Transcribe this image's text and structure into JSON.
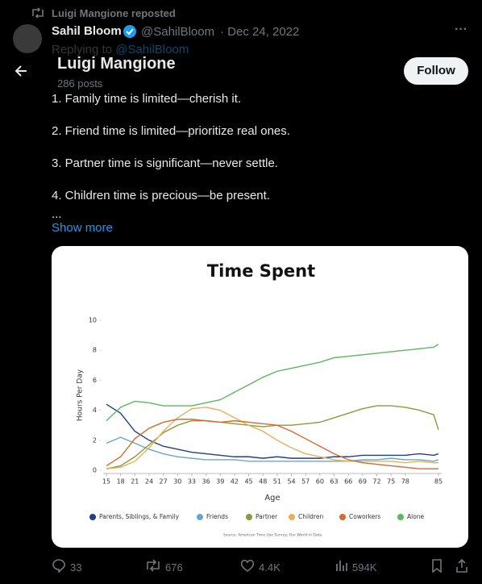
{
  "repost": "Luigi Mangione reposted",
  "header": {
    "title": "Luigi Mangione",
    "subtitle": "286 posts",
    "follow": "Follow"
  },
  "tweet": {
    "author": "Sahil Bloom",
    "handle": "@SahilBloom",
    "date": "· Dec 24, 2022",
    "replying": "Replying to",
    "replying_handle": "@SahilBloom",
    "lines": [
      "1. Family time is limited—cherish it.",
      "2. Friend time is limited—prioritize real ones.",
      "3. Partner time is significant—never settle.",
      "4. Children time is precious—be present.",
      "..."
    ],
    "show_more": "Show more"
  },
  "chart_data": {
    "type": "line",
    "title": "Time Spent",
    "x_label": "Age",
    "y_label": "Hours Per Day",
    "source": "Source: American Time Use Survey, Our World in Data",
    "x": [
      15,
      18,
      21,
      24,
      27,
      30,
      33,
      36,
      39,
      42,
      45,
      48,
      51,
      54,
      57,
      60,
      63,
      66,
      69,
      72,
      75,
      78,
      81,
      84,
      85
    ],
    "xlim": [
      15,
      85
    ],
    "ylim": [
      0,
      10
    ],
    "xticks": [
      15,
      18,
      21,
      24,
      27,
      30,
      33,
      36,
      39,
      42,
      45,
      48,
      51,
      54,
      57,
      60,
      63,
      66,
      69,
      72,
      75,
      78,
      85
    ],
    "yticks": [
      0,
      2,
      4,
      6,
      8,
      10
    ],
    "series": [
      {
        "name": "Parents, Siblings, & Family",
        "color": "#1f3f8a",
        "values": [
          4.4,
          3.8,
          2.6,
          2.0,
          1.6,
          1.4,
          1.2,
          1.1,
          1.0,
          0.9,
          0.9,
          0.8,
          0.9,
          0.8,
          0.8,
          0.8,
          0.9,
          0.9,
          1.0,
          1.0,
          1.0,
          1.0,
          1.1,
          1.0,
          1.1
        ]
      },
      {
        "name": "Friends",
        "color": "#6aa6c8",
        "values": [
          1.8,
          2.2,
          1.8,
          1.4,
          1.1,
          0.9,
          0.8,
          0.7,
          0.7,
          0.7,
          0.6,
          0.6,
          0.6,
          0.6,
          0.6,
          0.6,
          0.6,
          0.6,
          0.7,
          0.7,
          0.8,
          0.7,
          0.7,
          0.6,
          0.7
        ]
      },
      {
        "name": "Partner",
        "color": "#8c9a3c",
        "values": [
          0.1,
          0.3,
          0.9,
          1.7,
          2.5,
          3.0,
          3.3,
          3.3,
          3.2,
          3.1,
          3.0,
          2.9,
          3.0,
          3.0,
          3.1,
          3.2,
          3.5,
          3.8,
          4.1,
          4.3,
          4.3,
          4.2,
          4.0,
          3.7,
          2.7
        ]
      },
      {
        "name": "Children",
        "color": "#e6b05a",
        "values": [
          0.1,
          0.2,
          0.6,
          1.5,
          2.6,
          3.5,
          4.1,
          4.2,
          4.0,
          3.5,
          3.0,
          2.6,
          2.0,
          1.5,
          1.1,
          0.9,
          0.7,
          0.6,
          0.6,
          0.6,
          0.6,
          0.5,
          0.6,
          0.5,
          0.5
        ]
      },
      {
        "name": "Coworkers",
        "color": "#d9692e",
        "values": [
          0.3,
          0.9,
          2.1,
          2.8,
          3.2,
          3.4,
          3.4,
          3.3,
          3.2,
          3.3,
          3.2,
          3.1,
          3.0,
          2.6,
          2.1,
          1.6,
          1.1,
          0.7,
          0.5,
          0.4,
          0.3,
          0.2,
          0.1,
          0.1,
          0.1
        ]
      },
      {
        "name": "Alone",
        "color": "#5cb85c",
        "values": [
          3.3,
          4.2,
          4.6,
          4.5,
          4.3,
          4.3,
          4.3,
          4.5,
          4.7,
          5.2,
          5.7,
          6.2,
          6.6,
          6.8,
          7.0,
          7.2,
          7.5,
          7.6,
          7.7,
          7.8,
          7.9,
          8.0,
          8.1,
          8.2,
          8.4
        ]
      }
    ]
  },
  "actions": {
    "replies": "33",
    "reposts": "676",
    "likes": "4.4K",
    "views": "594K"
  }
}
